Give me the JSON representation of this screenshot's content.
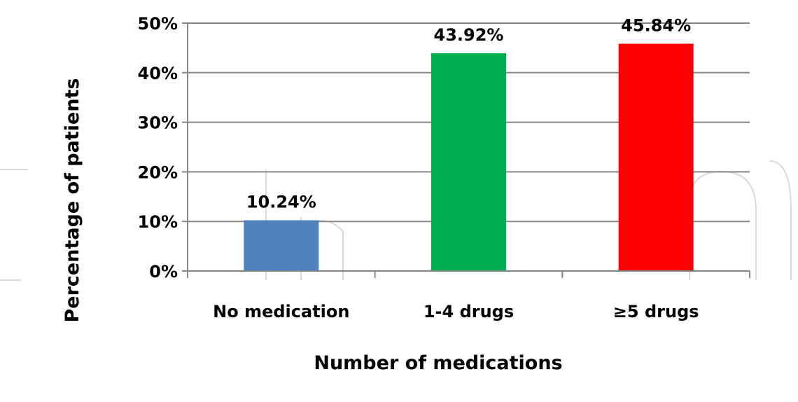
{
  "chart_data": {
    "type": "bar",
    "title": "",
    "xlabel": "Number of medications",
    "ylabel": "Percentage of patients",
    "categories": [
      "No medication",
      "1-4 drugs",
      "≥5 drugs"
    ],
    "values": [
      10.24,
      43.92,
      45.84
    ],
    "value_labels": [
      "10.24%",
      "43.92%",
      "45.84%"
    ],
    "colors": [
      "#4f81bd",
      "#00b050",
      "#ff0000"
    ],
    "ylim": [
      0,
      50
    ],
    "yticks": [
      0,
      10,
      20,
      30,
      40,
      50
    ],
    "ytick_labels": [
      "0%",
      "10%",
      "20%",
      "30%",
      "40%",
      "50%"
    ],
    "grid": "horizontal",
    "legend": "none"
  },
  "colors": {
    "gridline": "#868686",
    "axis": "#868686"
  }
}
